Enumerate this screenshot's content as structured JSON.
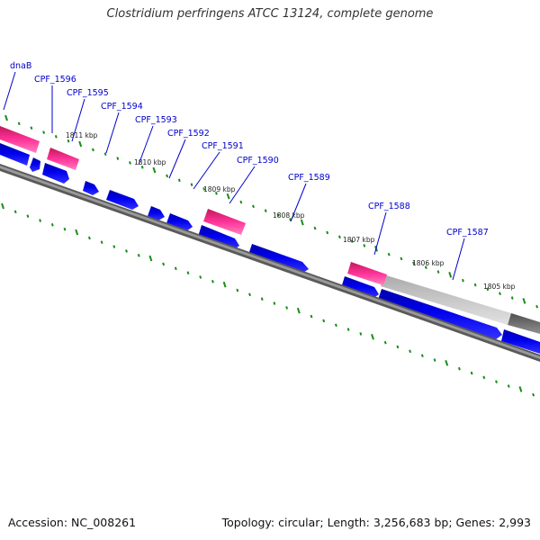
{
  "title": "Clostridium perfringens ATCC 13124, complete genome",
  "footer": {
    "accession": "Accession: NC_008261",
    "summary": "Topology: circular; Length: 3,256,683 bp; Genes: 2,993"
  },
  "colors": {
    "background": "#ffffff",
    "backbone": "#808080",
    "gene_forward": "#ff3399",
    "gene_reverse": "#0000ee",
    "tick": "#1a8c1a",
    "gene_label": "#0000cc",
    "kbp_label": "#222222"
  },
  "gene_labels": [
    "dnaB",
    "CPF_1596",
    "CPF_1595",
    "CPF_1594",
    "CPF_1593",
    "CPF_1592",
    "CPF_1591",
    "CPF_1590",
    "CPF_1589",
    "CPF_1588",
    "CPF_1587"
  ],
  "kbp_labels": [
    "1811 kbp",
    "1810 kbp",
    "1809 kbp",
    "1808 kbp",
    "1807 kbp",
    "1806 kbp",
    "1805 kbp"
  ]
}
